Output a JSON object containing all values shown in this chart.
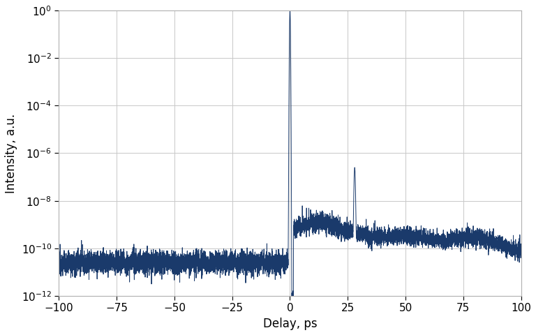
{
  "title": "",
  "xlabel": "Delay, ps",
  "ylabel": "Intensity, a.u.",
  "xlim": [
    -100,
    100
  ],
  "ylim_log": [
    -12,
    0
  ],
  "line_color": "#1a3a6b",
  "line_width": 0.7,
  "background_color": "#ffffff",
  "grid_color": "#c8c8c8",
  "noise_floor": 2.5e-11,
  "peak_value": 1.0,
  "satellite_delay": 28.0,
  "satellite_value": 2.5e-07,
  "x_ticks": [
    -100,
    -75,
    -50,
    -25,
    0,
    25,
    50,
    75,
    100
  ],
  "y_ticks": [
    1.0,
    0.01,
    0.0001,
    1e-06,
    1e-08,
    1e-10,
    1e-12
  ]
}
